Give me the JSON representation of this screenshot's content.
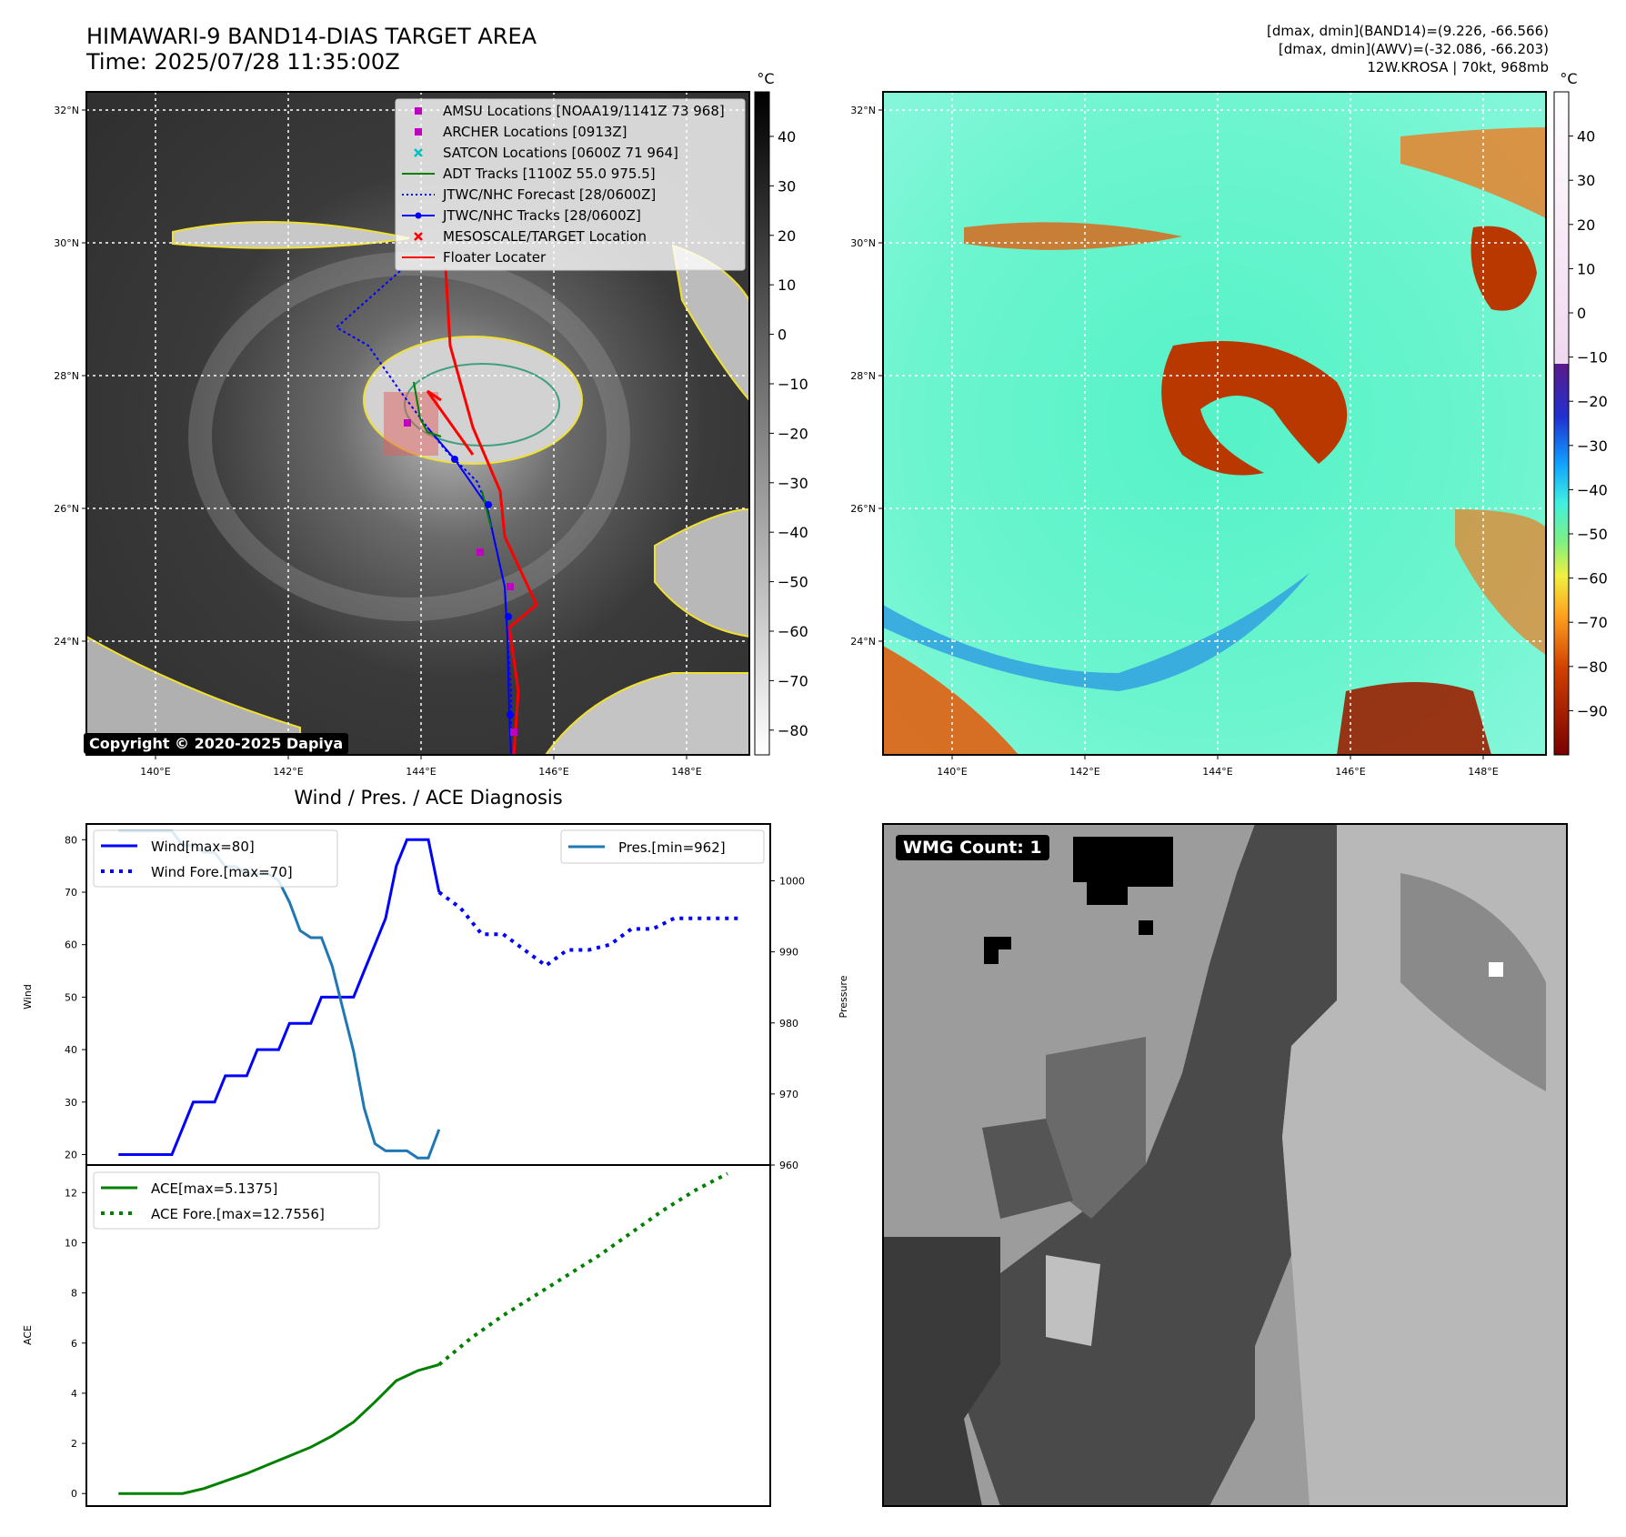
{
  "header": {
    "title_line1": "HIMAWARI-9 BAND14-DIAS TARGET AREA",
    "title_line2": "Time: 2025/07/28 11:35:00Z",
    "info_line1": "[dmax, dmin](BAND14)=(9.226, -66.566)",
    "info_line2": "[dmax, dmin](AWV)=(-32.086, -66.203)",
    "info_line3": "12W.KROSA | 70kt, 968mb"
  },
  "map_panels": {
    "lon_ticks": [
      "140°E",
      "142°E",
      "144°E",
      "146°E",
      "148°E"
    ],
    "lat_ticks": [
      "32°N",
      "30°N",
      "28°N",
      "26°N",
      "24°N"
    ],
    "copyright": "Copyright © 2020-2025 Dapiya",
    "legend": [
      {
        "label": "AMSU Locations [NOAA19/1141Z 73 968]",
        "color": "#c000c0",
        "marker": "square"
      },
      {
        "label": "ARCHER Locations [0913Z]",
        "color": "#c000c0",
        "marker": "square"
      },
      {
        "label": "SATCON Locations [0600Z 71 964]",
        "color": "#00bfbf",
        "marker": "x"
      },
      {
        "label": "ADT Tracks [1100Z 55.0 975.5]",
        "color": "#008000",
        "marker": "line"
      },
      {
        "label": "JTWC/NHC Forecast [28/0600Z]",
        "color": "#0000ff",
        "marker": "dotted"
      },
      {
        "label": "JTWC/NHC Tracks [28/0600Z]",
        "color": "#0000ff",
        "marker": "line-dot"
      },
      {
        "label": "MESOSCALE/TARGET Location",
        "color": "#ff0000",
        "marker": "x"
      },
      {
        "label": "Floater Locater",
        "color": "#ff0000",
        "marker": "line"
      }
    ],
    "colorbar1": {
      "unit": "°C",
      "ticks": [
        "40",
        "30",
        "20",
        "10",
        "0",
        "−10",
        "−20",
        "−30",
        "−40",
        "−50",
        "−60",
        "−70",
        "−80"
      ]
    },
    "colorbar2": {
      "unit": "°C",
      "ticks": [
        "40",
        "30",
        "20",
        "10",
        "0",
        "−10",
        "−20",
        "−30",
        "−40",
        "−50",
        "−60",
        "−70",
        "−80",
        "−90"
      ]
    }
  },
  "diagnosis_title": "Wind / Pres. / ACE Diagnosis",
  "wmg_label": "WMG Count: 1",
  "colors": {
    "wind": "#0000ff",
    "pressure": "#1f77b4",
    "ace": "#008000"
  },
  "chart_data": [
    {
      "type": "line",
      "ylabel": "Wind",
      "ylim": [
        18,
        83
      ],
      "yticks": [
        20,
        30,
        40,
        50,
        60,
        70,
        80
      ],
      "series": [
        {
          "name": "Wind[max=80]",
          "style": "solid",
          "x": [
            0,
            1,
            2,
            3,
            4,
            5,
            6,
            7,
            8,
            9,
            10,
            11,
            12,
            13,
            14,
            15,
            16,
            17,
            18,
            19,
            20,
            21,
            22,
            23,
            24,
            25,
            26,
            27,
            28,
            29,
            30,
            31,
            32,
            33,
            34,
            35
          ],
          "values": [
            20,
            20,
            20,
            20,
            20,
            20,
            25,
            30,
            30,
            30,
            35,
            35,
            35,
            40,
            40,
            40,
            45,
            45,
            45,
            50,
            50,
            50,
            50,
            55,
            60,
            65,
            75,
            80,
            80,
            80,
            70,
            null,
            null,
            null,
            null,
            null
          ]
        },
        {
          "name": "Wind Fore.[max=70]",
          "style": "dotted",
          "x": [
            30,
            32,
            34,
            36,
            38,
            40,
            42,
            44,
            46,
            48,
            50,
            52,
            54,
            56,
            58
          ],
          "values": [
            70,
            67,
            62,
            62,
            59,
            56,
            59,
            59,
            60,
            63,
            63,
            65,
            65,
            65,
            65
          ]
        }
      ]
    },
    {
      "type": "line",
      "ylabel": "Pressure",
      "ylim": [
        960,
        1008
      ],
      "yticks": [
        960,
        970,
        980,
        990,
        1000
      ],
      "series": [
        {
          "name": "Pres.[min=962]",
          "x": [
            0,
            2,
            4,
            5,
            6,
            7,
            8,
            9,
            10,
            11,
            12,
            13,
            14,
            15,
            16,
            17,
            18,
            19,
            20,
            21,
            22,
            23,
            24,
            25,
            26,
            27,
            28,
            29,
            30
          ],
          "values": [
            1007,
            1007,
            1007,
            1007,
            1005,
            1005,
            1004,
            1004,
            1002,
            1002,
            1001,
            1001,
            1001,
            1000,
            997,
            993,
            992,
            992,
            988,
            982,
            976,
            968,
            963,
            962,
            962,
            962,
            961,
            961,
            965
          ]
        }
      ]
    },
    {
      "type": "line",
      "ylabel": "ACE",
      "ylim": [
        -0.5,
        13.1
      ],
      "yticks": [
        0,
        2,
        4,
        6,
        8,
        10,
        12
      ],
      "series": [
        {
          "name": "ACE[max=5.1375]",
          "style": "solid",
          "x": [
            0,
            3,
            6,
            8,
            10,
            12,
            14,
            16,
            18,
            20,
            22,
            24,
            26,
            28,
            30
          ],
          "values": [
            0,
            0,
            0,
            0.2,
            0.5,
            0.8,
            1.15,
            1.5,
            1.85,
            2.3,
            2.85,
            3.65,
            4.5,
            4.9,
            5.14
          ]
        },
        {
          "name": "ACE Fore.[max=12.7556]",
          "style": "dotted",
          "x": [
            30,
            33,
            36,
            39,
            42,
            45,
            48,
            51,
            54,
            57
          ],
          "values": [
            5.14,
            6.2,
            7.1,
            7.9,
            8.7,
            9.5,
            10.4,
            11.3,
            12.1,
            12.76
          ]
        }
      ]
    }
  ]
}
